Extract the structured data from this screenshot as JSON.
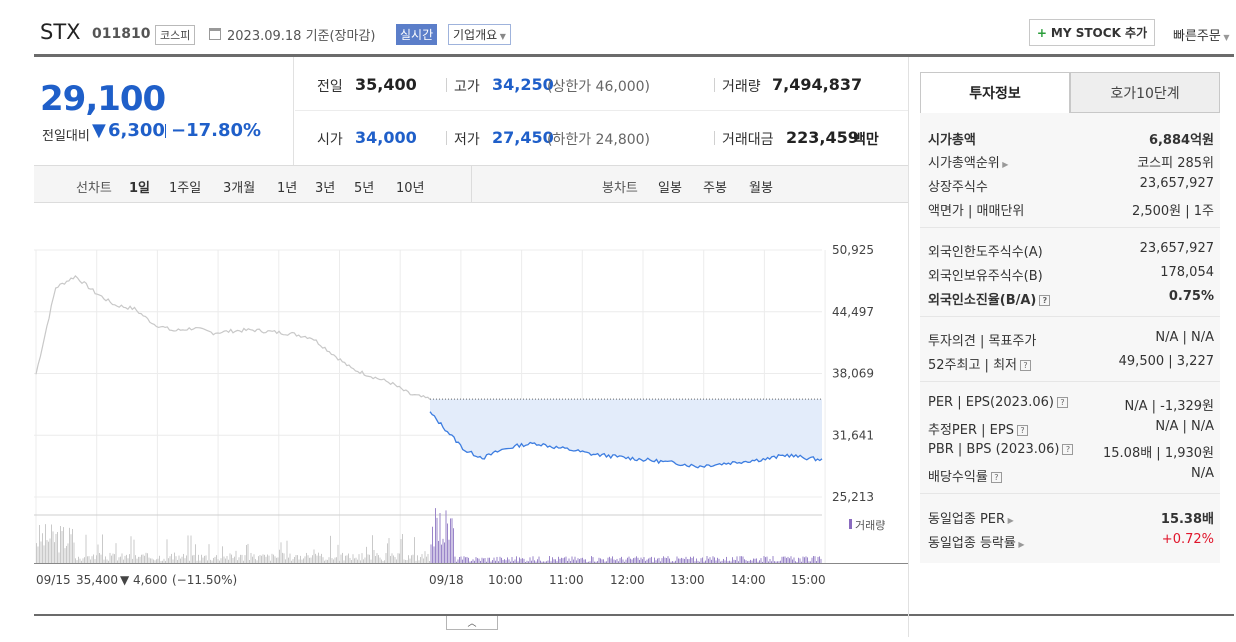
{
  "header": {
    "name": "STX",
    "code": "011810",
    "market": "코스피",
    "date": "2023.09.18 기준(장마감)",
    "realtime": "실시간",
    "company_info": "기업개요",
    "mystock": "MY STOCK 추가",
    "quick_order": "빠른주문"
  },
  "price": {
    "current": "29,100",
    "change_label": "전일대비",
    "change": "6,300",
    "change_pct": "−17.80%"
  },
  "stats": {
    "prev_label": "전일",
    "prev": "35,400",
    "high_label": "고가",
    "high": "34,250",
    "upper_limit": "(상한가 46,000)",
    "volume_label": "거래량",
    "volume": "7,494,837",
    "open_label": "시가",
    "open": "34,000",
    "low_label": "저가",
    "low": "27,450",
    "lower_limit": "(하한가 24,800)",
    "amount_label": "거래대금",
    "amount": "223,459",
    "amount_unit": "백만"
  },
  "period": {
    "line_label": "선차트",
    "line_options": [
      "1일",
      "1주일",
      "3개월",
      "1년",
      "3년",
      "5년",
      "10년"
    ],
    "candle_label": "봉차트",
    "candle_options": [
      "일봉",
      "주봉",
      "월봉"
    ]
  },
  "chart_data": {
    "type": "line",
    "y_ticks": [
      "50,925",
      "44,497",
      "38,069",
      "31,641",
      "25,213"
    ],
    "ylim": [
      25213,
      50925
    ],
    "x_ticks": [
      "09/18",
      "10:00",
      "11:00",
      "12:00",
      "13:00",
      "14:00",
      "15:00"
    ],
    "volume_label": "거래량",
    "prev_day_summary": {
      "date": "09/15",
      "close": "35,400",
      "change": "▼ 4,600",
      "pct": "(−11.50%)"
    },
    "prev_close": 35400,
    "series": [
      {
        "values_prev_day": [
          38000,
          47000,
          48200,
          46500,
          45200,
          44800,
          43200,
          42500,
          42800,
          42300,
          42500,
          42600,
          42400,
          42200,
          41800,
          40200,
          38600,
          37800,
          37100,
          35900,
          35400
        ]
      },
      {
        "values_today": [
          34000,
          32000,
          30000,
          29300,
          30100,
          30600,
          30800,
          30400,
          30100,
          29700,
          29500,
          29300,
          29100,
          28900,
          28700,
          28400,
          28600,
          28800,
          29000,
          29200,
          29600,
          29300,
          29100
        ]
      }
    ]
  },
  "panel": {
    "tab_active": "투자정보",
    "tab_other": "호가10단계",
    "rows1": [
      {
        "label": "시가총액",
        "value": "6,884억원"
      },
      {
        "label": "시가총액순위",
        "value": "코스피 285위"
      },
      {
        "label": "상장주식수",
        "value": "23,657,927"
      },
      {
        "label": "액면가 | 매매단위",
        "value": "2,500원 | 1주"
      }
    ],
    "rows2": [
      {
        "label": "외국인한도주식수(A)",
        "value": "23,657,927"
      },
      {
        "label": "외국인보유주식수(B)",
        "value": "178,054"
      },
      {
        "label": "외국인소진율(B/A)",
        "value": "0.75%"
      }
    ],
    "rows3": [
      {
        "label": "투자의견 | 목표주가",
        "value": "N/A | N/A"
      },
      {
        "label": "52주최고 | 최저",
        "value": "49,500 | 3,227"
      }
    ],
    "rows4": [
      {
        "label": "PER | EPS(2023.06)",
        "value": "N/A | -1,329원"
      },
      {
        "label": "추정PER | EPS",
        "value": "N/A | N/A"
      },
      {
        "label": "PBR | BPS (2023.06)",
        "value": "15.08배 | 1,930원"
      },
      {
        "label": "배당수익률",
        "value": "N/A"
      }
    ],
    "rows5": [
      {
        "label": "동일업종 PER",
        "value": "15.38배"
      },
      {
        "label": "동일업종 등락률",
        "value": "+0.72%"
      }
    ],
    "colors": {
      "up": "#e0152b",
      "down": "#1f5fc9"
    }
  }
}
